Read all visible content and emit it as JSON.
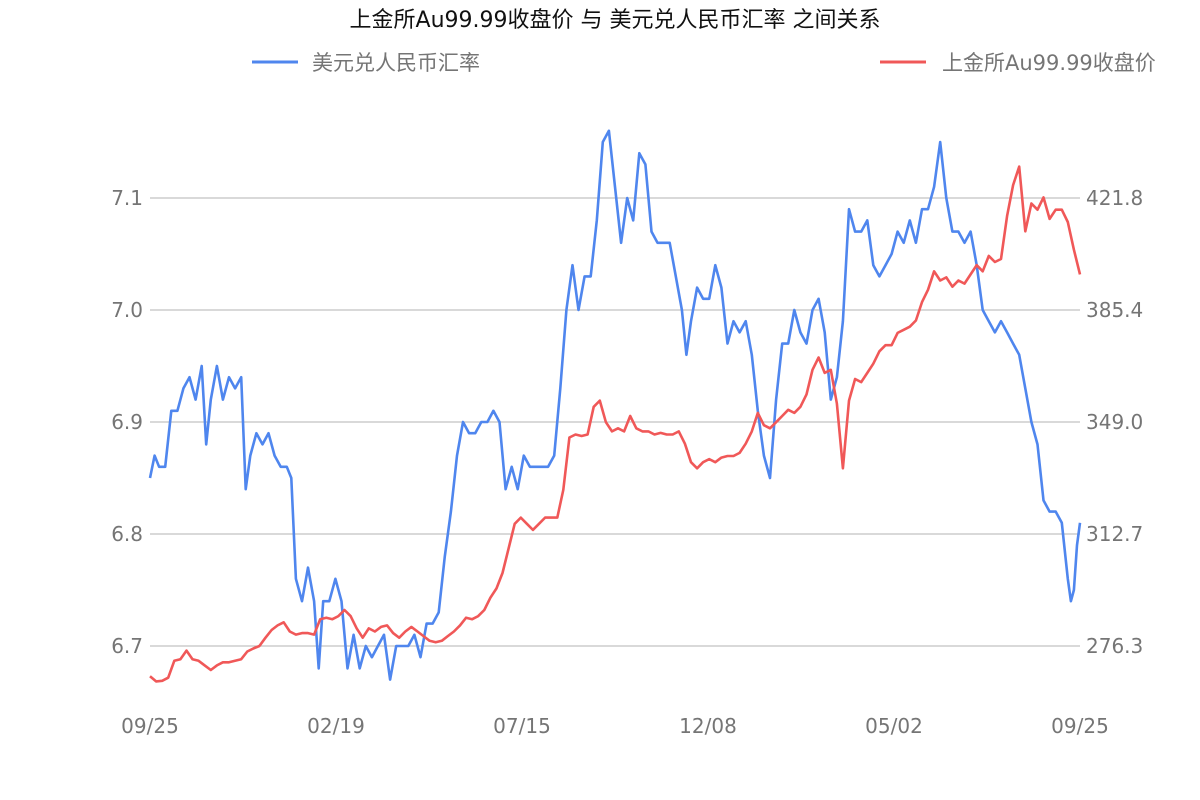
{
  "chart_data": {
    "type": "line",
    "title": "上金所Au99.99收盘价 与 美元兑人民币汇率 之间关系",
    "x_tick_labels": [
      "09/25",
      "02/19",
      "07/15",
      "12/08",
      "05/02",
      "09/25"
    ],
    "y_left": {
      "ticks": [
        "6.7",
        "6.8",
        "6.9",
        "7.0",
        "7.1"
      ],
      "range": [
        6.6,
        7.17
      ]
    },
    "y_right": {
      "ticks": [
        "276.3",
        "312.7",
        "349.0",
        "385.4",
        "421.8"
      ],
      "range": [
        243.8,
        431.5
      ]
    },
    "grid": true,
    "legend": [
      {
        "name": "美元兑人民币汇率",
        "position": "top-left"
      },
      {
        "name": "上金所Au99.99收盘价",
        "position": "top-right"
      }
    ],
    "series": [
      {
        "name": "美元兑人民币汇率",
        "axis": "left",
        "color": "#4f86ee",
        "points": [
          [
            0,
            6.85
          ],
          [
            3,
            6.87
          ],
          [
            6,
            6.86
          ],
          [
            10,
            6.86
          ],
          [
            14,
            6.91
          ],
          [
            18,
            6.91
          ],
          [
            22,
            6.93
          ],
          [
            26,
            6.94
          ],
          [
            30,
            6.92
          ],
          [
            34,
            6.95
          ],
          [
            37,
            6.88
          ],
          [
            40,
            6.92
          ],
          [
            44,
            6.95
          ],
          [
            48,
            6.92
          ],
          [
            52,
            6.94
          ],
          [
            56,
            6.93
          ],
          [
            60,
            6.94
          ],
          [
            63,
            6.84
          ],
          [
            66,
            6.87
          ],
          [
            70,
            6.89
          ],
          [
            74,
            6.88
          ],
          [
            78,
            6.89
          ],
          [
            82,
            6.87
          ],
          [
            86,
            6.86
          ],
          [
            90,
            6.86
          ],
          [
            93,
            6.85
          ],
          [
            96,
            6.76
          ],
          [
            100,
            6.74
          ],
          [
            104,
            6.77
          ],
          [
            108,
            6.74
          ],
          [
            111,
            6.68
          ],
          [
            114,
            6.74
          ],
          [
            118,
            6.74
          ],
          [
            122,
            6.76
          ],
          [
            126,
            6.74
          ],
          [
            130,
            6.68
          ],
          [
            134,
            6.71
          ],
          [
            138,
            6.68
          ],
          [
            142,
            6.7
          ],
          [
            146,
            6.69
          ],
          [
            150,
            6.7
          ],
          [
            154,
            6.71
          ],
          [
            158,
            6.67
          ],
          [
            162,
            6.7
          ],
          [
            166,
            6.7
          ],
          [
            170,
            6.7
          ],
          [
            174,
            6.71
          ],
          [
            178,
            6.69
          ],
          [
            182,
            6.72
          ],
          [
            186,
            6.72
          ],
          [
            190,
            6.73
          ],
          [
            194,
            6.78
          ],
          [
            198,
            6.82
          ],
          [
            202,
            6.87
          ],
          [
            206,
            6.9
          ],
          [
            210,
            6.89
          ],
          [
            214,
            6.89
          ],
          [
            218,
            6.9
          ],
          [
            222,
            6.9
          ],
          [
            226,
            6.91
          ],
          [
            230,
            6.9
          ],
          [
            234,
            6.84
          ],
          [
            238,
            6.86
          ],
          [
            242,
            6.84
          ],
          [
            246,
            6.87
          ],
          [
            250,
            6.86
          ],
          [
            254,
            6.86
          ],
          [
            258,
            6.86
          ],
          [
            262,
            6.86
          ],
          [
            266,
            6.87
          ],
          [
            270,
            6.93
          ],
          [
            274,
            7.0
          ],
          [
            278,
            7.04
          ],
          [
            282,
            7.0
          ],
          [
            286,
            7.03
          ],
          [
            290,
            7.03
          ],
          [
            294,
            7.08
          ],
          [
            298,
            7.15
          ],
          [
            302,
            7.16
          ],
          [
            306,
            7.11
          ],
          [
            310,
            7.06
          ],
          [
            314,
            7.1
          ],
          [
            318,
            7.08
          ],
          [
            322,
            7.14
          ],
          [
            326,
            7.13
          ],
          [
            330,
            7.07
          ],
          [
            334,
            7.06
          ],
          [
            338,
            7.06
          ],
          [
            342,
            7.06
          ],
          [
            346,
            7.03
          ],
          [
            350,
            7.0
          ],
          [
            353,
            6.96
          ],
          [
            356,
            6.99
          ],
          [
            360,
            7.02
          ],
          [
            364,
            7.01
          ],
          [
            368,
            7.01
          ],
          [
            372,
            7.04
          ],
          [
            376,
            7.02
          ],
          [
            380,
            6.97
          ],
          [
            384,
            6.99
          ],
          [
            388,
            6.98
          ],
          [
            392,
            6.99
          ],
          [
            396,
            6.96
          ],
          [
            400,
            6.91
          ],
          [
            404,
            6.87
          ],
          [
            408,
            6.85
          ],
          [
            412,
            6.92
          ],
          [
            416,
            6.97
          ],
          [
            420,
            6.97
          ],
          [
            424,
            7.0
          ],
          [
            428,
            6.98
          ],
          [
            432,
            6.97
          ],
          [
            436,
            7.0
          ],
          [
            440,
            7.01
          ],
          [
            444,
            6.98
          ],
          [
            448,
            6.92
          ],
          [
            452,
            6.94
          ],
          [
            456,
            6.99
          ],
          [
            460,
            7.09
          ],
          [
            464,
            7.07
          ],
          [
            468,
            7.07
          ],
          [
            472,
            7.08
          ],
          [
            476,
            7.04
          ],
          [
            480,
            7.03
          ],
          [
            484,
            7.04
          ],
          [
            488,
            7.05
          ],
          [
            492,
            7.07
          ],
          [
            496,
            7.06
          ],
          [
            500,
            7.08
          ],
          [
            504,
            7.06
          ],
          [
            508,
            7.09
          ],
          [
            512,
            7.09
          ],
          [
            516,
            7.11
          ],
          [
            520,
            7.15
          ],
          [
            524,
            7.1
          ],
          [
            528,
            7.07
          ],
          [
            532,
            7.07
          ],
          [
            536,
            7.06
          ],
          [
            540,
            7.07
          ],
          [
            544,
            7.04
          ],
          [
            548,
            7.0
          ],
          [
            552,
            6.99
          ],
          [
            556,
            6.98
          ],
          [
            560,
            6.99
          ],
          [
            564,
            6.98
          ],
          [
            568,
            6.97
          ],
          [
            572,
            6.96
          ],
          [
            576,
            6.93
          ],
          [
            580,
            6.9
          ],
          [
            584,
            6.88
          ],
          [
            588,
            6.83
          ],
          [
            592,
            6.82
          ],
          [
            596,
            6.82
          ],
          [
            600,
            6.81
          ],
          [
            604,
            6.76
          ],
          [
            606,
            6.74
          ],
          [
            608,
            6.75
          ],
          [
            610,
            6.79
          ],
          [
            612,
            6.81
          ]
        ]
      },
      {
        "name": "上金所Au99.99收盘价",
        "axis": "right",
        "color": "#f05858",
        "points": [
          [
            0,
            266.5
          ],
          [
            4,
            264.8
          ],
          [
            8,
            265.0
          ],
          [
            12,
            266.0
          ],
          [
            16,
            271.5
          ],
          [
            20,
            272.0
          ],
          [
            24,
            274.8
          ],
          [
            28,
            272.0
          ],
          [
            32,
            271.5
          ],
          [
            36,
            270.0
          ],
          [
            40,
            268.5
          ],
          [
            44,
            270.0
          ],
          [
            48,
            271.0
          ],
          [
            52,
            271.0
          ],
          [
            56,
            271.5
          ],
          [
            60,
            272.0
          ],
          [
            64,
            274.5
          ],
          [
            68,
            275.5
          ],
          [
            72,
            276.3
          ],
          [
            76,
            279.0
          ],
          [
            80,
            281.5
          ],
          [
            84,
            283.0
          ],
          [
            88,
            284.0
          ],
          [
            92,
            281.0
          ],
          [
            96,
            280.0
          ],
          [
            100,
            280.5
          ],
          [
            104,
            280.5
          ],
          [
            108,
            280.0
          ],
          [
            112,
            285.0
          ],
          [
            116,
            285.5
          ],
          [
            120,
            285.0
          ],
          [
            124,
            286.0
          ],
          [
            128,
            288.0
          ],
          [
            132,
            286.0
          ],
          [
            136,
            282.0
          ],
          [
            140,
            279.0
          ],
          [
            144,
            282.0
          ],
          [
            148,
            281.0
          ],
          [
            152,
            282.5
          ],
          [
            156,
            283.0
          ],
          [
            160,
            280.5
          ],
          [
            164,
            279.0
          ],
          [
            168,
            281.0
          ],
          [
            172,
            282.5
          ],
          [
            176,
            281.0
          ],
          [
            180,
            279.5
          ],
          [
            184,
            278.0
          ],
          [
            188,
            277.5
          ],
          [
            192,
            278.0
          ],
          [
            196,
            279.5
          ],
          [
            200,
            281.0
          ],
          [
            204,
            283.0
          ],
          [
            208,
            285.5
          ],
          [
            212,
            285.0
          ],
          [
            216,
            286.0
          ],
          [
            220,
            288.0
          ],
          [
            224,
            292.0
          ],
          [
            228,
            295.0
          ],
          [
            232,
            300.0
          ],
          [
            236,
            308.0
          ],
          [
            240,
            316.0
          ],
          [
            244,
            318.0
          ],
          [
            248,
            316.0
          ],
          [
            252,
            314.0
          ],
          [
            256,
            316.0
          ],
          [
            260,
            318.0
          ],
          [
            264,
            318.0
          ],
          [
            268,
            318.0
          ],
          [
            272,
            327.0
          ],
          [
            276,
            344.0
          ],
          [
            280,
            345.0
          ],
          [
            284,
            344.5
          ],
          [
            288,
            345.0
          ],
          [
            292,
            354.0
          ],
          [
            296,
            356.0
          ],
          [
            300,
            349.0
          ],
          [
            304,
            346.0
          ],
          [
            308,
            347.0
          ],
          [
            312,
            346.0
          ],
          [
            316,
            351.0
          ],
          [
            320,
            347.0
          ],
          [
            324,
            346.0
          ],
          [
            328,
            346.0
          ],
          [
            332,
            345.0
          ],
          [
            336,
            345.5
          ],
          [
            340,
            345.0
          ],
          [
            344,
            345.0
          ],
          [
            348,
            346.0
          ],
          [
            352,
            342.0
          ],
          [
            356,
            336.0
          ],
          [
            360,
            334.0
          ],
          [
            364,
            336.0
          ],
          [
            368,
            337.0
          ],
          [
            372,
            336.0
          ],
          [
            376,
            337.5
          ],
          [
            380,
            338.0
          ],
          [
            384,
            338.0
          ],
          [
            388,
            339.0
          ],
          [
            392,
            342.0
          ],
          [
            396,
            346.0
          ],
          [
            400,
            352.0
          ],
          [
            404,
            348.0
          ],
          [
            408,
            347.0
          ],
          [
            412,
            349.0
          ],
          [
            416,
            351.0
          ],
          [
            420,
            353.0
          ],
          [
            424,
            352.0
          ],
          [
            428,
            354.0
          ],
          [
            432,
            358.0
          ],
          [
            436,
            366.0
          ],
          [
            440,
            370.0
          ],
          [
            444,
            365.0
          ],
          [
            448,
            366.0
          ],
          [
            452,
            355.0
          ],
          [
            456,
            334.0
          ],
          [
            460,
            356.0
          ],
          [
            464,
            363.0
          ],
          [
            468,
            362.0
          ],
          [
            472,
            365.0
          ],
          [
            476,
            368.0
          ],
          [
            480,
            372.0
          ],
          [
            484,
            374.0
          ],
          [
            488,
            374.0
          ],
          [
            492,
            378.0
          ],
          [
            496,
            379.0
          ],
          [
            500,
            380.0
          ],
          [
            504,
            382.0
          ],
          [
            508,
            388.0
          ],
          [
            512,
            392.0
          ],
          [
            516,
            398.0
          ],
          [
            520,
            395.0
          ],
          [
            524,
            396.0
          ],
          [
            528,
            393.0
          ],
          [
            532,
            395.0
          ],
          [
            536,
            394.0
          ],
          [
            540,
            397.0
          ],
          [
            544,
            400.0
          ],
          [
            548,
            398.0
          ],
          [
            552,
            403.0
          ],
          [
            556,
            401.0
          ],
          [
            560,
            402.0
          ],
          [
            564,
            416.0
          ],
          [
            568,
            426.0
          ],
          [
            572,
            432.0
          ],
          [
            576,
            411.0
          ],
          [
            580,
            420.0
          ],
          [
            584,
            418.0
          ],
          [
            588,
            422.0
          ],
          [
            592,
            415.0
          ],
          [
            596,
            418.0
          ],
          [
            600,
            418.0
          ],
          [
            604,
            414.0
          ],
          [
            608,
            405.0
          ],
          [
            612,
            397.0
          ]
        ]
      }
    ],
    "x_tick_positions": [
      0,
      122,
      244,
      367,
      489,
      612
    ]
  }
}
